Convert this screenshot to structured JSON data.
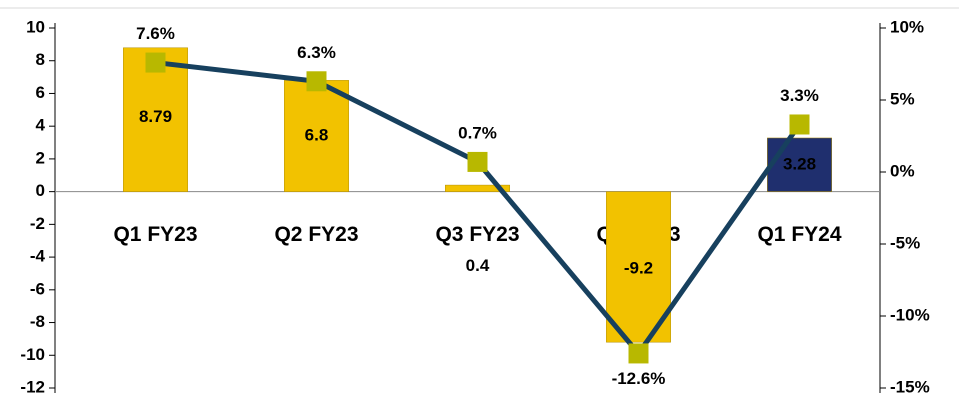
{
  "chart_data": {
    "type": "bar",
    "categories": [
      "Q1 FY23",
      "Q2 FY23",
      "Q3 FY23",
      "Q4 FY23",
      "Q1 FY24"
    ],
    "series": [
      {
        "type": "bar",
        "colors": [
          "#f2c200",
          "#f2c200",
          "#f2c200",
          "#f2c200",
          "#1f2f6e"
        ],
        "values": [
          8.79,
          6.8,
          0.4,
          -9.2,
          3.28
        ]
      },
      {
        "type": "line",
        "axis": "y2",
        "color": "#17405e",
        "marker_color": "#b8b800",
        "values": [
          7.6,
          6.3,
          0.7,
          -12.6,
          3.3
        ],
        "value_labels": [
          "7.6%",
          "6.3%",
          "0.7%",
          "-12.6%",
          "3.3%"
        ]
      }
    ],
    "ylim": [
      -12,
      10
    ],
    "yticks": [
      -12,
      -10,
      -8,
      -6,
      -4,
      -2,
      0,
      2,
      4,
      6,
      8,
      10
    ],
    "y2lim": [
      -15,
      10
    ],
    "y2ticks": [
      {
        "value": -15,
        "label": "-15%"
      },
      {
        "value": -10,
        "label": "-10%"
      },
      {
        "value": -5,
        "label": "-5%"
      },
      {
        "value": 0,
        "label": "0%"
      },
      {
        "value": 5,
        "label": "5%"
      },
      {
        "value": 10,
        "label": "10%"
      }
    ],
    "grid": false
  }
}
